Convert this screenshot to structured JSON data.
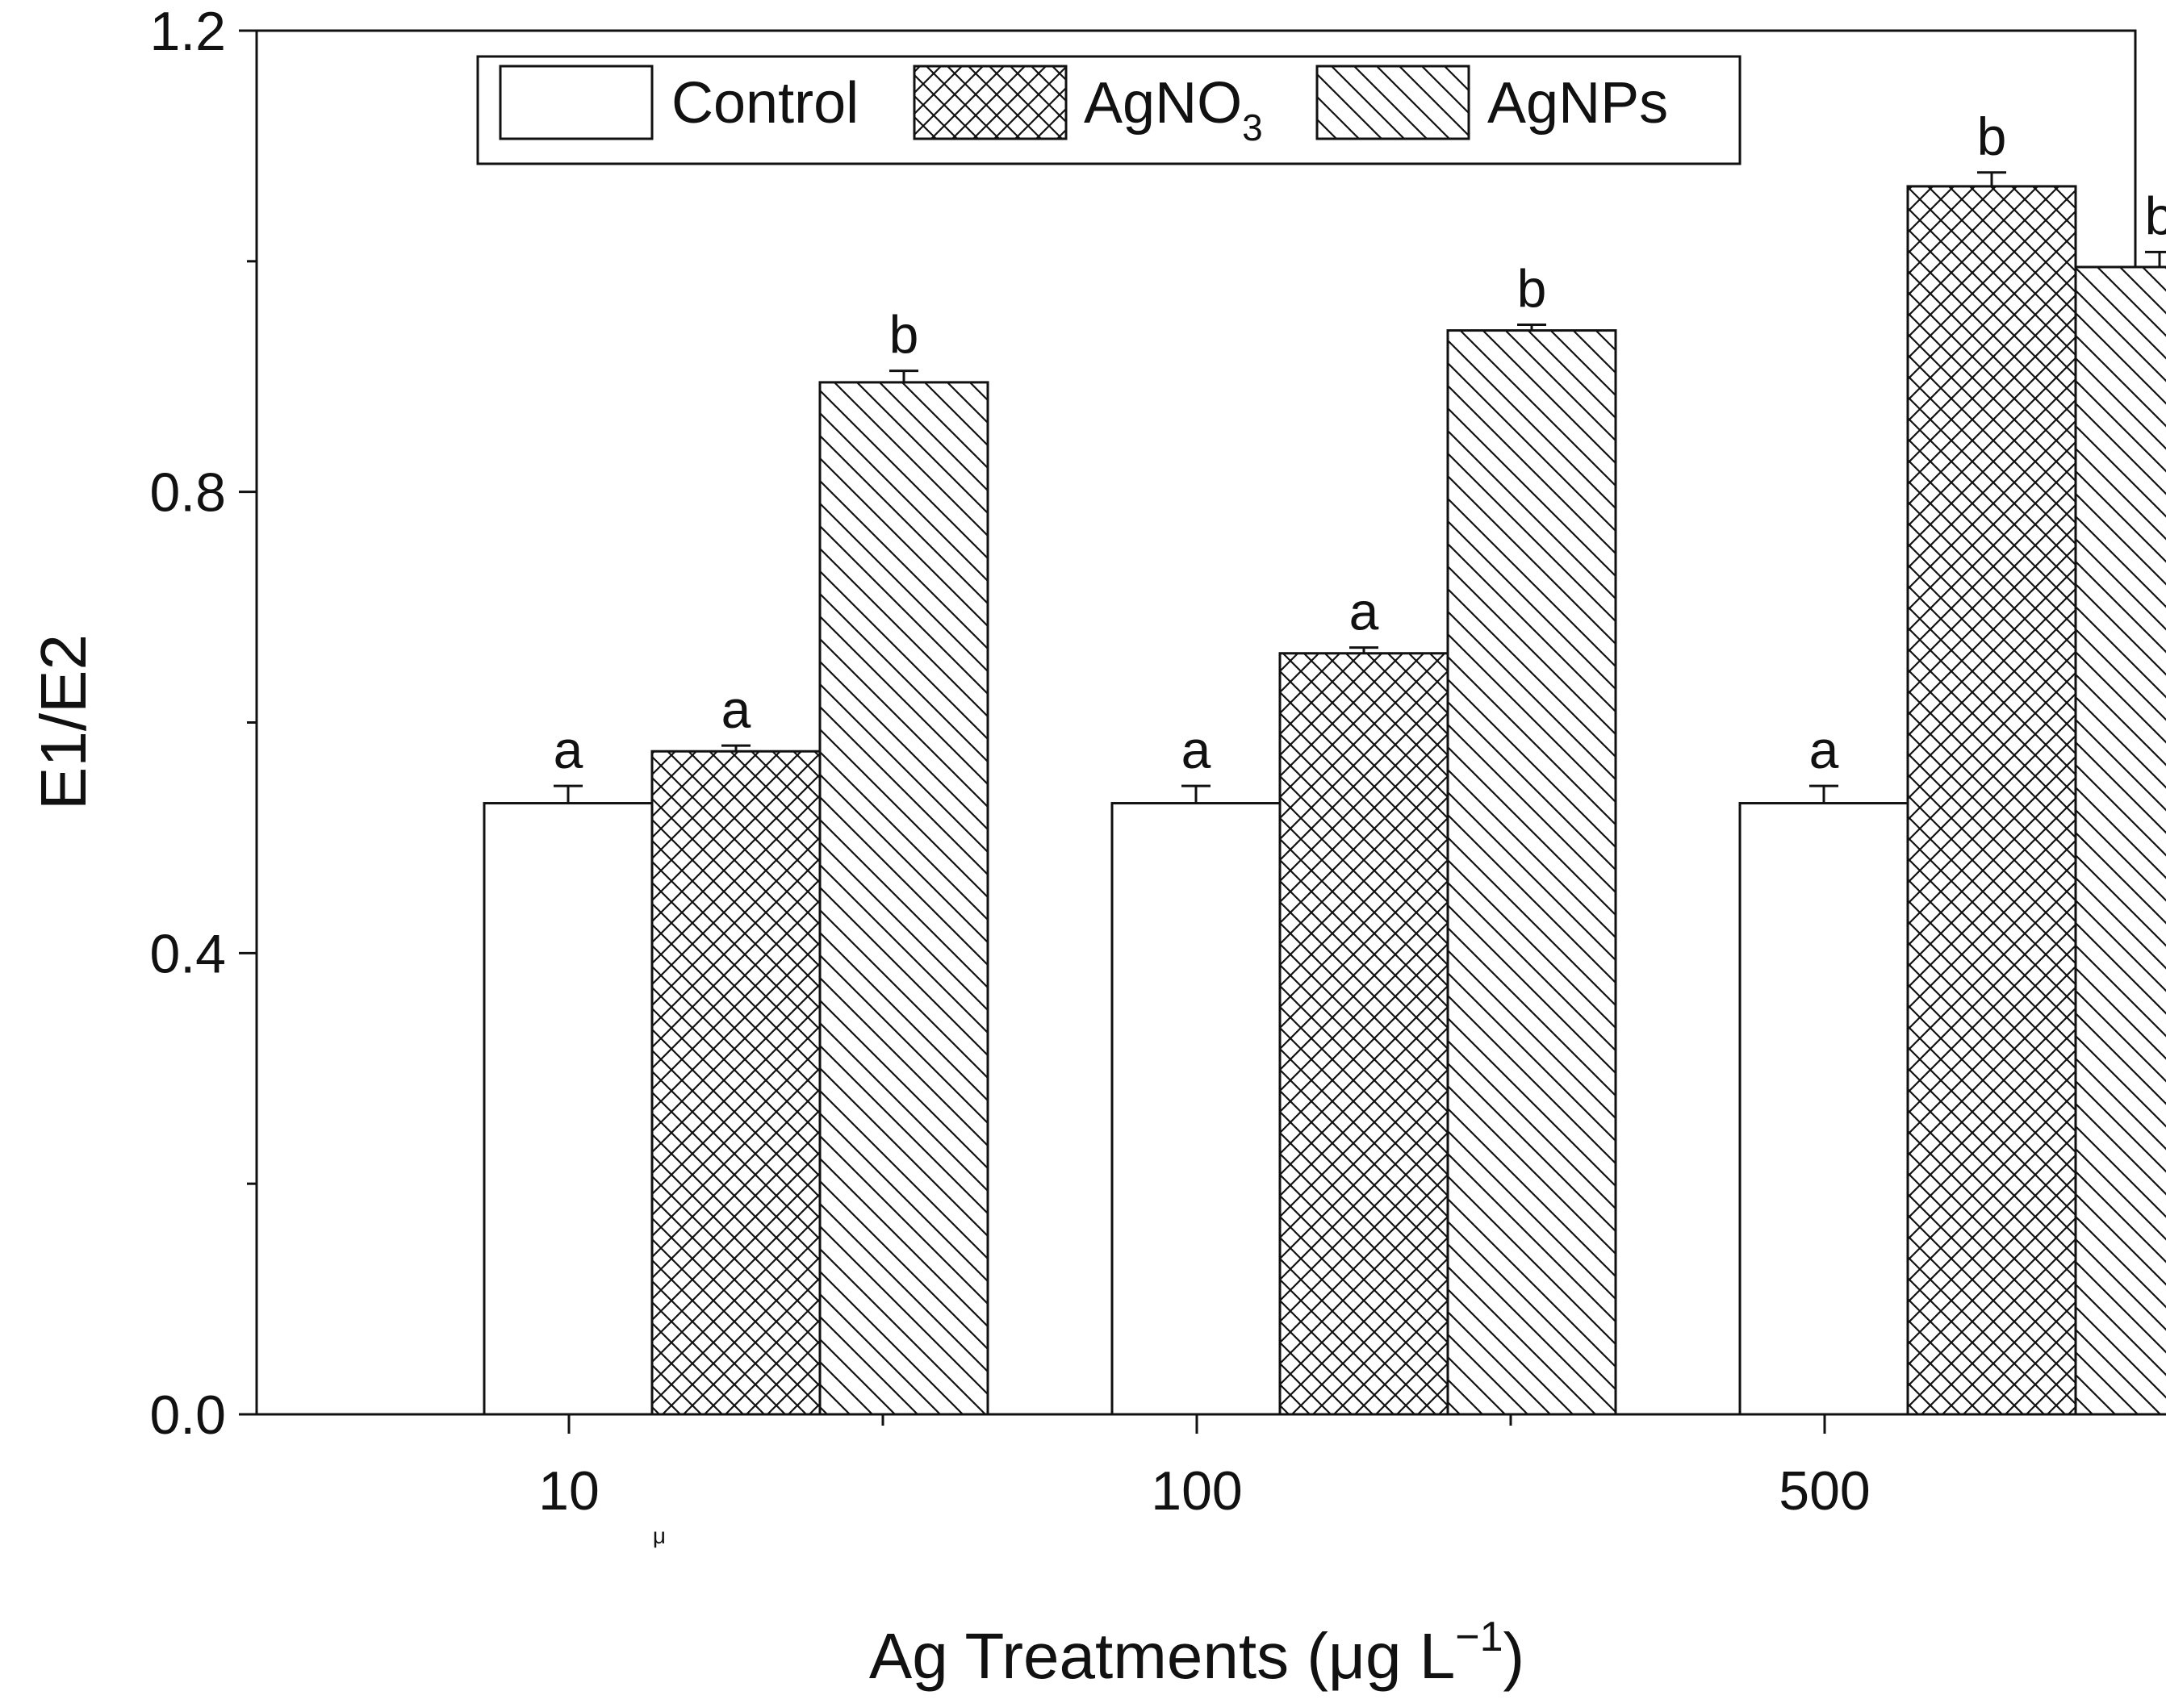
{
  "chart_data": {
    "type": "bar",
    "title": "",
    "xlabel": "Ag Treatments (μg L⁻¹)",
    "xlabel_parts": {
      "main": "Ag Treatments (μg L",
      "sup": "−1",
      "close": ")"
    },
    "ylabel": "E1/E2",
    "ylim": [
      0,
      1.2
    ],
    "yticks": [
      "0.0",
      "0.4",
      "0.8",
      "1.2"
    ],
    "categories": [
      "10",
      "100",
      "500"
    ],
    "stray_mark": "μ",
    "series": [
      {
        "name": "Control",
        "pattern": "none",
        "values": [
          0.53,
          0.53,
          0.53
        ],
        "errors": [
          0.015,
          0.015,
          0.015
        ],
        "letters": [
          "a",
          "a",
          "a"
        ]
      },
      {
        "name": "AgNO3",
        "name_main": "AgNO",
        "name_sub": "3",
        "pattern": "crosshatch",
        "values": [
          0.575,
          0.66,
          1.065
        ],
        "errors": [
          0.005,
          0.005,
          0.012
        ],
        "letters": [
          "a",
          "a",
          "b"
        ]
      },
      {
        "name": "AgNPs",
        "pattern": "diagonal",
        "values": [
          0.895,
          0.94,
          0.995
        ],
        "errors": [
          0.01,
          0.005,
          0.013
        ],
        "letters": [
          "b",
          "b",
          "b"
        ]
      }
    ],
    "legend": {
      "position": "top-center"
    },
    "colors": {
      "bar_fill": "#ffffff",
      "bar_stroke": "#111111",
      "axis": "#111111"
    }
  }
}
